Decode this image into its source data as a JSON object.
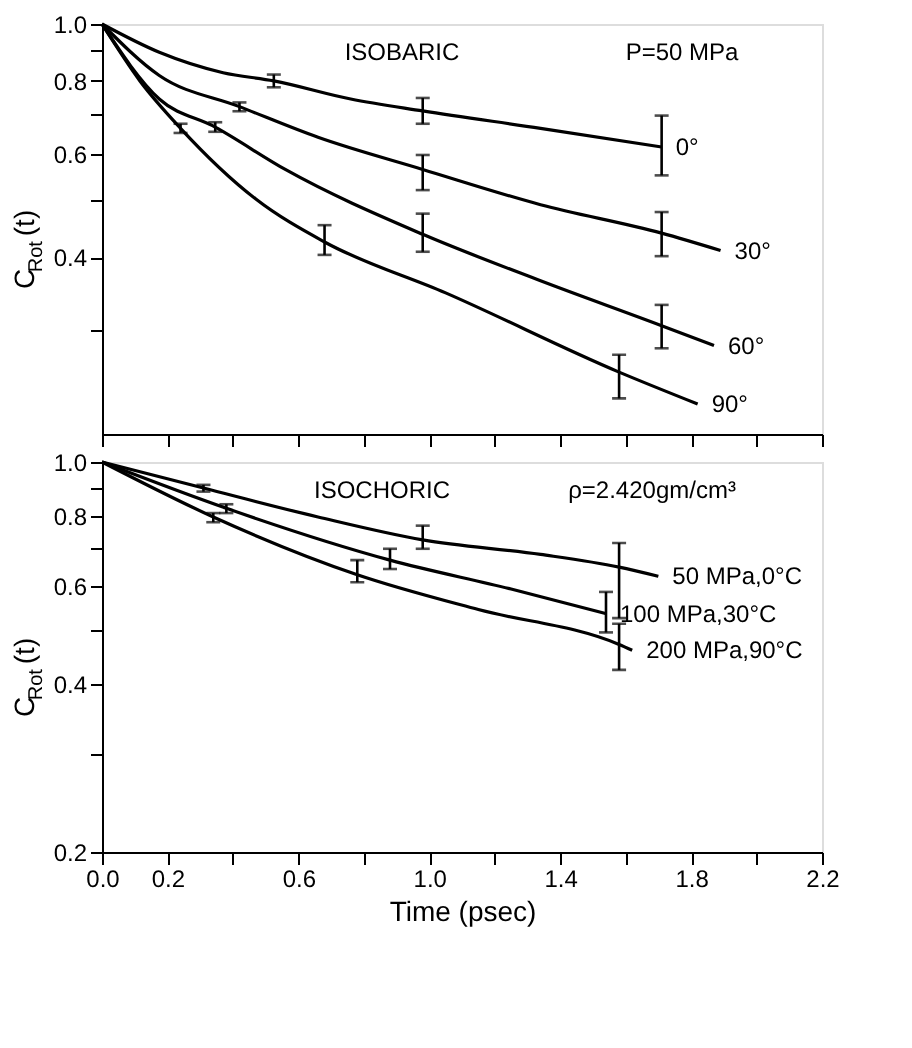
{
  "chart_data": [
    {
      "type": "line",
      "ylabel": "C$_{Rot}$ (t)",
      "log": "y",
      "xlim": [
        0,
        2.2
      ],
      "ylim": [
        0.2,
        1.0
      ],
      "tick_labels": "y",
      "grid": false,
      "marker": "none",
      "line_style": "solid",
      "xticks": [
        0,
        0.2,
        0.4,
        0.6,
        0.8,
        1,
        1.2,
        1.4,
        1.6,
        1.8,
        2.0,
        2.2
      ],
      "yticks": [
        {
          "value": 0.3,
          "label": null
        },
        0.4,
        {
          "value": 0.5,
          "label": null
        },
        0.6,
        {
          "value": 0.7,
          "label": null
        },
        0.8,
        {
          "value": 0.9,
          "label": null
        },
        {
          "value": 1.0,
          "label": "1.0"
        }
      ],
      "annotations": [
        "ISOBARIC",
        "P=50 MPa"
      ],
      "series": [
        {
          "name": "0°",
          "color": "#000000",
          "x": [
            0,
            0.175,
            0.37,
            0.525,
            0.76,
            0.98,
            1.34,
            1.71
          ],
          "values": [
            1.0,
            0.895,
            0.826,
            0.8,
            0.745,
            0.711,
            0.664,
            0.617
          ],
          "errors": [
            null,
            null,
            null,
            [
              0.78,
              0.82
            ],
            null,
            [
              0.676,
              0.748
            ],
            null,
            [
              0.552,
              0.698
            ]
          ]
        },
        {
          "name": "30°",
          "color": "#000000",
          "x": [
            0,
            0.175,
            0.42,
            0.66,
            0.98,
            1.34,
            1.71,
            1.89
          ],
          "values": [
            1.0,
            0.817,
            0.723,
            0.641,
            0.565,
            0.492,
            0.44,
            0.411
          ],
          "errors": [
            null,
            null,
            [
              0.71,
              0.735
            ],
            null,
            [
              0.521,
              0.598
            ],
            null,
            [
              0.402,
              0.478
            ],
            null
          ]
        },
        {
          "name": "60°",
          "color": "#000000",
          "x": [
            0,
            0.175,
            0.346,
            0.56,
            0.98,
            1.34,
            1.71,
            1.87
          ],
          "values": [
            1.0,
            0.745,
            0.667,
            0.565,
            0.438,
            0.365,
            0.306,
            0.283
          ],
          "errors": [
            null,
            null,
            [
              0.655,
              0.68
            ],
            null,
            [
              0.409,
              0.475
            ],
            null,
            [
              0.28,
              0.332
            ],
            null
          ]
        },
        {
          "name": "90°",
          "color": "#000000",
          "x": [
            0,
            0.117,
            0.24,
            0.47,
            0.68,
            1.05,
            1.58,
            1.82
          ],
          "values": [
            1.0,
            0.798,
            0.664,
            0.503,
            0.425,
            0.348,
            0.255,
            0.225
          ],
          "errors": [
            null,
            null,
            [
              0.652,
              0.676
            ],
            null,
            [
              0.404,
              0.454
            ],
            null,
            [
              0.23,
              0.273
            ],
            null
          ]
        }
      ]
    },
    {
      "type": "line",
      "xlabel": "Time (psec)",
      "ylabel": "C$_{Rot}$ (t)",
      "log": "y",
      "xlim": [
        0,
        2.2
      ],
      "ylim": [
        0.2,
        1.0
      ],
      "grid": false,
      "marker": "none",
      "line_style": "solid",
      "xticks": [
        {
          "value": 0,
          "label": "0.0"
        },
        0.2,
        {
          "value": 0.4,
          "label": null
        },
        0.6,
        {
          "value": 0.8,
          "label": null
        },
        {
          "value": 1.0,
          "label": "1.0"
        },
        {
          "value": 1.2,
          "label": null
        },
        1.4,
        {
          "value": 1.6,
          "label": null
        },
        1.8,
        {
          "value": 2.0,
          "label": null
        },
        2.2
      ],
      "yticks": [
        0.2,
        {
          "value": 0.3,
          "label": null
        },
        0.4,
        {
          "value": 0.5,
          "label": null
        },
        0.6,
        {
          "value": 0.7,
          "label": null
        },
        0.8,
        {
          "value": 0.9,
          "label": null
        },
        {
          "value": 1.0,
          "label": "1.0"
        }
      ],
      "annotations": [
        "ISOCHORIC",
        "ρ=2.420gm/cm³"
      ],
      "series": [
        {
          "name": "50 MPa,0°C",
          "color": "#000000",
          "x": [
            0,
            0.31,
            0.66,
            0.98,
            1.34,
            1.58,
            1.7
          ],
          "values": [
            1.0,
            0.898,
            0.797,
            0.725,
            0.683,
            0.648,
            0.624
          ],
          "errors": [
            null,
            [
              0.885,
              0.91
            ],
            null,
            [
              0.699,
              0.769
            ],
            null,
            [
              0.525,
              0.716
            ],
            null
          ]
        },
        {
          "name": "100 MPa,30°C",
          "color": "#000000",
          "x": [
            0,
            0.38,
            0.88,
            1.25,
            1.54
          ],
          "values": [
            1.0,
            0.826,
            0.667,
            0.592,
            0.535
          ],
          "errors": [
            null,
            [
              0.81,
              0.84
            ],
            [
              0.643,
              0.699
            ],
            null,
            [
              0.495,
              0.585
            ]
          ]
        },
        {
          "name": "200 MPa,90°C",
          "color": "#000000",
          "x": [
            0,
            0.34,
            0.78,
            1.15,
            1.58,
            1.62
          ],
          "values": [
            1.0,
            0.797,
            0.628,
            0.544,
            0.471,
            0.46
          ],
          "errors": [
            null,
            [
              0.78,
              0.81
            ],
            [
              0.609,
              0.667
            ],
            null,
            [
              0.424,
              0.513
            ],
            null
          ]
        }
      ]
    }
  ]
}
